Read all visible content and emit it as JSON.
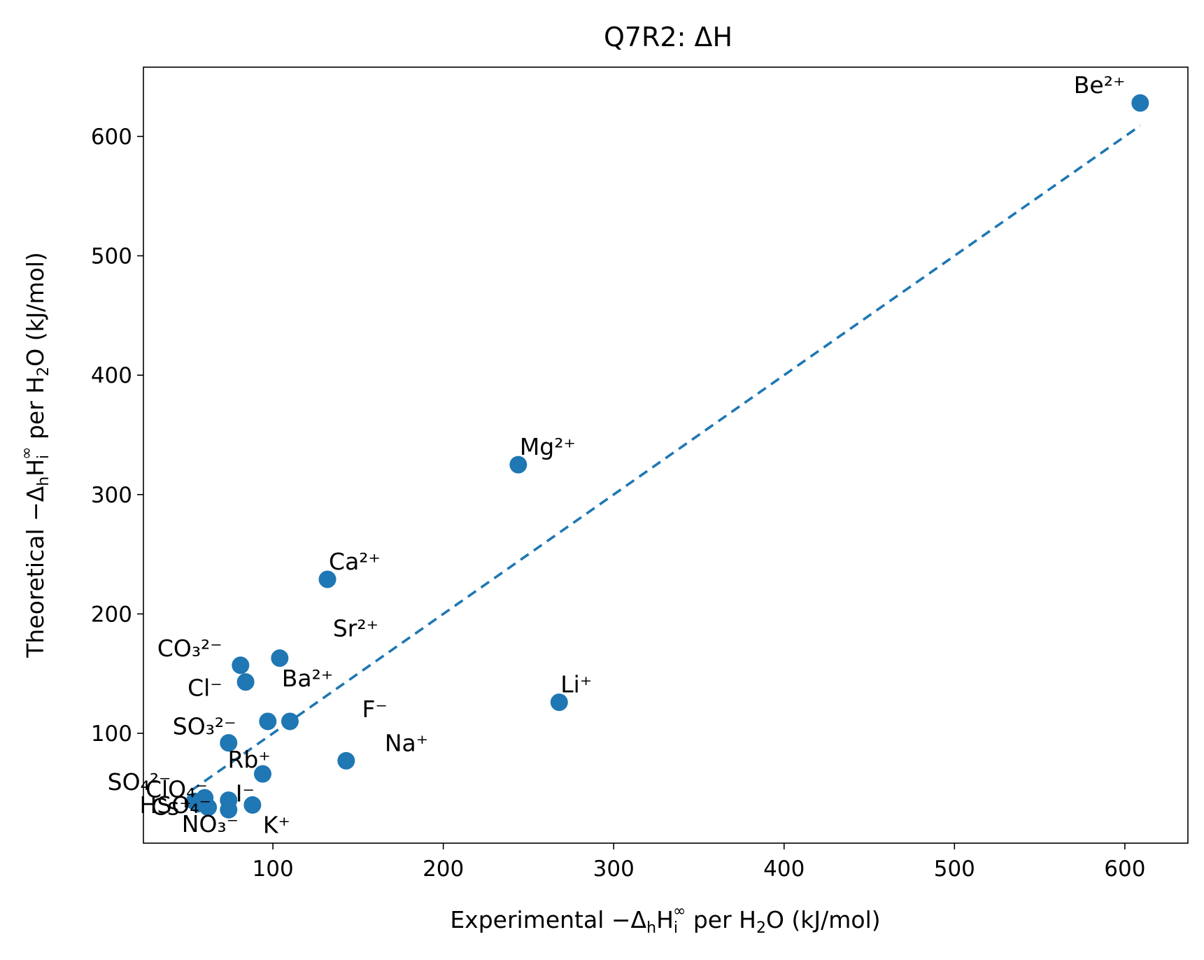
{
  "chart_data": {
    "type": "scatter",
    "title": "Q7R2: ΔH",
    "xlabel": {
      "prefix": "Experimental −Δ",
      "sub1": "h",
      "mid1": "H",
      "sub2": "i",
      "sup": "∞",
      "mid2": " per H",
      "sub3": "2",
      "suffix": "O (kJ/mol)"
    },
    "ylabel": {
      "prefix": "Theoretical −Δ",
      "sub1": "h",
      "mid1": "H",
      "sub2": "i",
      "sup": "∞",
      "mid2": " per H",
      "sub3": "2",
      "suffix": "O (kJ/mol)"
    },
    "xlim": [
      24,
      637
    ],
    "ylim": [
      8,
      658
    ],
    "xticks": [
      100,
      200,
      300,
      400,
      500,
      600
    ],
    "yticks": [
      100,
      200,
      300,
      400,
      500,
      600
    ],
    "grid": false,
    "legend": "none",
    "point_color": "#1f77b4",
    "fit_line": {
      "x": [
        52,
        609
      ],
      "y": [
        52,
        609
      ],
      "style": "dashed",
      "color": "#1f77b4"
    },
    "points": [
      {
        "label": "Be²⁺",
        "x": 609,
        "y": 628
      },
      {
        "label": "Mg²⁺",
        "x": 244,
        "y": 325
      },
      {
        "label": "Ca²⁺",
        "x": 132,
        "y": 229
      },
      {
        "label": "Sr²⁺",
        "x": 104,
        "y": 163
      },
      {
        "label": "Ba²⁺",
        "x": 97,
        "y": 110
      },
      {
        "label": "Li⁺",
        "x": 268,
        "y": 126
      },
      {
        "label": "Na⁺",
        "x": 143,
        "y": 77
      },
      {
        "label": "K⁺",
        "x": 88,
        "y": 40
      },
      {
        "label": "Rb⁺",
        "x": 94,
        "y": 66
      },
      {
        "label": "Cs⁺",
        "x": 54,
        "y": 43
      },
      {
        "label": "F⁻",
        "x": 110,
        "y": 110
      },
      {
        "label": "Cl⁻",
        "x": 84,
        "y": 143
      },
      {
        "label": "I⁻",
        "x": 74,
        "y": 44
      },
      {
        "label": "NO₃⁻",
        "x": 74,
        "y": 36
      },
      {
        "label": "CO₃²⁻",
        "x": 81,
        "y": 157
      },
      {
        "label": "SO₃²⁻",
        "x": 74,
        "y": 92
      },
      {
        "label": "SO₄²⁻",
        "x": 60,
        "y": 46
      },
      {
        "label": "HSO₄⁻",
        "x": 62,
        "y": 38
      },
      {
        "label": "ClO₄⁻",
        "x": 56,
        "y": 41
      }
    ]
  }
}
